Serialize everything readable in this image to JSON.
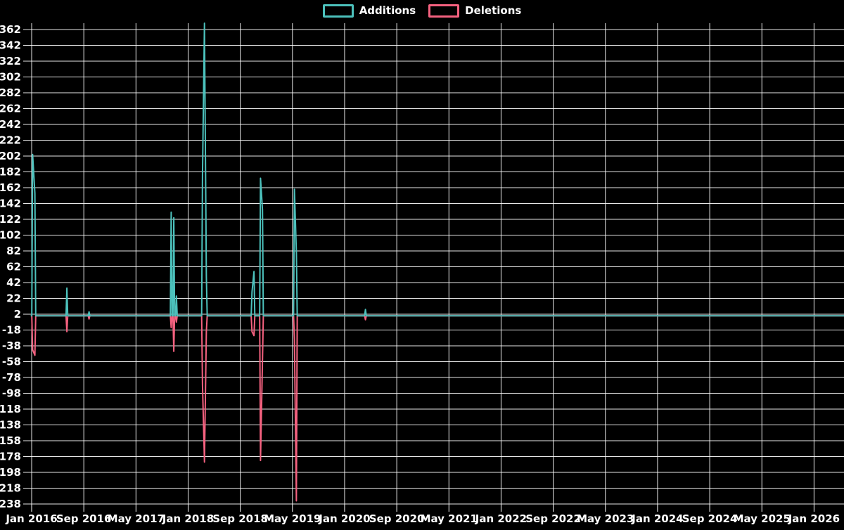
{
  "page": {
    "background": "#000000",
    "text_color": "#ffffff",
    "grid_color": "#ffffff"
  },
  "legend": {
    "items": [
      {
        "label": "Additions",
        "color": "#4cc1bc"
      },
      {
        "label": "Deletions",
        "color": "#f4617f"
      }
    ]
  },
  "chart_data": {
    "type": "line",
    "title": "",
    "legend_position": "top-center",
    "grid": true,
    "x_axis": {
      "unit": "months since Jan 2016",
      "tick_months": [
        0,
        8,
        16,
        24,
        32,
        40,
        48,
        56,
        64,
        72,
        80,
        88,
        96,
        104,
        112,
        120
      ],
      "tick_labels": [
        "Jan 2016",
        "Sep 2016",
        "May 2017",
        "Jan 2018",
        "Sep 2018",
        "May 2019",
        "Jan 2020",
        "Sep 2020",
        "May 2021",
        "Jan 2022",
        "Sep 2022",
        "May 2023",
        "Jan 2024",
        "Sep 2024",
        "May 2025",
        "Jan 2026"
      ]
    },
    "y_axis": {
      "min": -238,
      "max": 362,
      "step": 20,
      "tick_labels": [
        "362",
        "342",
        "322",
        "302",
        "282",
        "262",
        "242",
        "222",
        "202",
        "182",
        "162",
        "142",
        "122",
        "102",
        "82",
        "62",
        "42",
        "22",
        "2",
        "-18",
        "-38",
        "-58",
        "-78",
        "-98",
        "-118",
        "-138",
        "-158",
        "-178",
        "-198",
        "-218",
        "-238"
      ]
    },
    "baseline_value": 0,
    "series": [
      {
        "name": "Additions",
        "color": "#4cc1bc",
        "default": 0,
        "spikes": [
          [
            0.15,
            204
          ],
          [
            0.5,
            155
          ],
          [
            5.4,
            35
          ],
          [
            8.8,
            5
          ],
          [
            21.4,
            131
          ],
          [
            21.8,
            124
          ],
          [
            22.2,
            25
          ],
          [
            26.2,
            177
          ],
          [
            26.5,
            370
          ],
          [
            26.8,
            50
          ],
          [
            33.8,
            30
          ],
          [
            34.1,
            56
          ],
          [
            35.1,
            174
          ],
          [
            35.4,
            134
          ],
          [
            40.3,
            160
          ],
          [
            40.6,
            80
          ],
          [
            51.2,
            8
          ]
        ]
      },
      {
        "name": "Deletions",
        "color": "#f4617f",
        "default": 0,
        "spikes": [
          [
            0.15,
            -43
          ],
          [
            0.5,
            -50
          ],
          [
            5.4,
            -20
          ],
          [
            8.8,
            -4
          ],
          [
            21.4,
            -15
          ],
          [
            21.8,
            -45
          ],
          [
            22.2,
            -8
          ],
          [
            26.2,
            -87
          ],
          [
            26.5,
            -185
          ],
          [
            26.8,
            -20
          ],
          [
            33.8,
            -20
          ],
          [
            34.1,
            -25
          ],
          [
            35.1,
            -183
          ],
          [
            35.4,
            -56
          ],
          [
            40.3,
            -30
          ],
          [
            40.6,
            -234
          ],
          [
            51.2,
            -5
          ]
        ]
      }
    ]
  }
}
